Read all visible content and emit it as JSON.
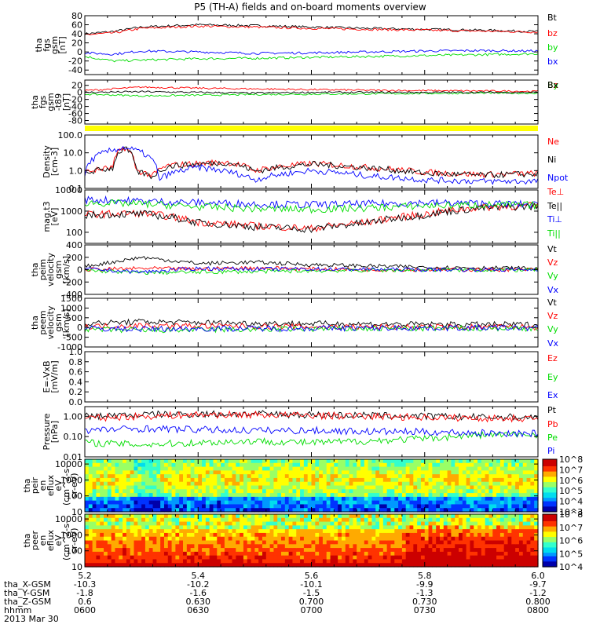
{
  "title": "P5 (TH-A) fields and on-board moments overview",
  "x_axis": {
    "ticks": [
      "5.2",
      "5.4",
      "5.6",
      "5.8",
      "6.0"
    ],
    "rows": [
      {
        "label": "tha_X-GSM",
        "values": [
          "-10.3",
          "-10.2",
          "-10.1",
          "-9.9",
          "-9.7"
        ]
      },
      {
        "label": "tha_Y-GSM",
        "values": [
          "-1.8",
          "-1.6",
          "-1.5",
          "-1.3",
          "-1.2"
        ]
      },
      {
        "label": "tha_Z-GSM",
        "values": [
          "0.6",
          "0.630",
          "0.700",
          "0.730",
          "0.800"
        ]
      },
      {
        "label": "hhmm",
        "values": [
          "0600",
          "0630",
          "0700",
          "0730",
          "0800"
        ]
      }
    ],
    "date": "2013 Mar 30"
  },
  "colors": {
    "black": "#000000",
    "red": "#ff0000",
    "green": "#00dd00",
    "blue": "#0000ff",
    "yellow": "#ffff00"
  },
  "chart_data": [
    {
      "type": "line",
      "ylabel": [
        "tha",
        "fgs",
        "gsm",
        "[nT]"
      ],
      "ylim": [
        -50,
        80
      ],
      "yticks": [
        "80",
        "60",
        "40",
        "20",
        "0",
        "-20",
        "-40"
      ],
      "legend": [
        {
          "name": "Bt",
          "color": "#000000"
        },
        {
          "name": "bz",
          "color": "#ff0000"
        },
        {
          "name": "by",
          "color": "#00dd00"
        },
        {
          "name": "bx",
          "color": "#0000ff"
        }
      ],
      "series": [
        {
          "name": "Bt",
          "x": [
            5.2,
            5.25,
            5.3,
            5.4,
            5.5,
            5.6,
            5.7,
            5.8,
            5.9,
            6.0
          ],
          "values": [
            40,
            45,
            55,
            60,
            58,
            55,
            52,
            50,
            48,
            45
          ]
        },
        {
          "name": "bz",
          "x": [
            5.2,
            5.25,
            5.3,
            5.4,
            5.5,
            5.6,
            5.7,
            5.8,
            5.9,
            6.0
          ],
          "values": [
            38,
            42,
            52,
            57,
            55,
            52,
            50,
            48,
            46,
            44
          ]
        },
        {
          "name": "by",
          "x": [
            5.2,
            5.25,
            5.3,
            5.4,
            5.5,
            5.6,
            5.7,
            5.8,
            5.9,
            6.0
          ],
          "values": [
            -10,
            -20,
            -18,
            -15,
            -14,
            -12,
            -10,
            -8,
            -6,
            -4
          ]
        },
        {
          "name": "bx",
          "x": [
            5.2,
            5.25,
            5.3,
            5.4,
            5.5,
            5.6,
            5.7,
            5.8,
            5.9,
            6.0
          ],
          "values": [
            -2,
            -5,
            2,
            0,
            -3,
            -2,
            0,
            2,
            3,
            2
          ]
        }
      ]
    },
    {
      "type": "line",
      "ylabel": [
        "tha",
        "fgs",
        "gsm",
        "-t89",
        "[nT]"
      ],
      "ylim": [
        -90,
        35
      ],
      "yticks": [
        "20",
        "0",
        "-20",
        "-40",
        "-60",
        "-80"
      ],
      "legend": [
        {
          "name": "Bz",
          "color": "#ff0000"
        },
        {
          "name": "By",
          "color": "#00dd00"
        },
        {
          "name": "Bx",
          "color": "#000000"
        }
      ],
      "series": [
        {
          "name": "Bz",
          "x": [
            5.2,
            5.3,
            5.4,
            5.5,
            5.6,
            5.7,
            5.8,
            5.9,
            6.0
          ],
          "values": [
            5,
            15,
            12,
            10,
            8,
            6,
            5,
            4,
            3
          ]
        },
        {
          "name": "By",
          "x": [
            5.2,
            5.3,
            5.4,
            5.5,
            5.6,
            5.7,
            5.8,
            5.9,
            6.0
          ],
          "values": [
            -5,
            -10,
            -8,
            -6,
            -5,
            -4,
            -3,
            -2,
            -2
          ]
        },
        {
          "name": "Bx",
          "x": [
            5.2,
            5.3,
            5.4,
            5.5,
            5.6,
            5.7,
            5.8,
            5.9,
            6.0
          ],
          "values": [
            0,
            2,
            0,
            -2,
            0,
            0,
            0,
            0,
            0
          ]
        }
      ]
    },
    {
      "type": "line",
      "ylabel": [
        "Density",
        "[cm-3]"
      ],
      "yscale": "log",
      "ylim": [
        0.1,
        100
      ],
      "yticks": [
        "100.0",
        "10.0",
        "1.0",
        "0.1"
      ],
      "legend": [
        {
          "name": "Ne",
          "color": "#ff0000"
        },
        {
          "name": "Ni",
          "color": "#000000"
        },
        {
          "name": "Npot",
          "color": "#0000ff"
        }
      ],
      "series": [
        {
          "name": "Ne",
          "x": [
            5.2,
            5.25,
            5.27,
            5.29,
            5.32,
            5.35,
            5.45,
            5.5,
            5.6,
            5.7,
            5.8,
            5.9,
            6.0
          ],
          "values": [
            0.8,
            1.5,
            20,
            1.0,
            0.5,
            2.0,
            3.0,
            1.0,
            2.5,
            1.5,
            0.8,
            0.6,
            0.7
          ]
        },
        {
          "name": "Ni",
          "x": [
            5.2,
            5.25,
            5.27,
            5.29,
            5.32,
            5.35,
            5.45,
            5.5,
            5.6,
            5.7,
            5.8,
            5.9,
            6.0
          ],
          "values": [
            0.7,
            1.4,
            18,
            0.9,
            0.45,
            1.8,
            2.8,
            0.9,
            2.3,
            1.4,
            0.7,
            0.55,
            0.65
          ]
        },
        {
          "name": "Npot",
          "x": [
            5.2,
            5.27,
            5.33,
            5.4,
            5.5,
            5.6,
            5.7,
            5.8,
            5.9,
            6.0
          ],
          "values": [
            0.5,
            20,
            0.3,
            1.5,
            0.3,
            1.0,
            0.5,
            0.3,
            0.25,
            0.25
          ]
        }
      ]
    },
    {
      "type": "line",
      "ylabel": [
        "mag.t3",
        "[eV]"
      ],
      "yscale": "log",
      "ylim": [
        30,
        10000
      ],
      "yticks": [
        "10000",
        "1000",
        "100"
      ],
      "legend": [
        {
          "name": "Te⊥",
          "color": "#ff0000"
        },
        {
          "name": "Te||",
          "color": "#000000"
        },
        {
          "name": "Ti⊥",
          "color": "#0000ff"
        },
        {
          "name": "Ti||",
          "color": "#00dd00"
        }
      ],
      "series": [
        {
          "name": "Te⊥",
          "x": [
            5.2,
            5.3,
            5.4,
            5.5,
            5.6,
            5.7,
            5.8,
            5.9,
            6.0
          ],
          "values": [
            700,
            800,
            300,
            200,
            150,
            300,
            700,
            1500,
            1800
          ]
        },
        {
          "name": "Te||",
          "x": [
            5.2,
            5.3,
            5.4,
            5.5,
            5.6,
            5.7,
            5.8,
            5.9,
            6.0
          ],
          "values": [
            650,
            750,
            280,
            180,
            140,
            280,
            650,
            1400,
            1700
          ]
        },
        {
          "name": "Ti⊥",
          "x": [
            5.2,
            5.3,
            5.4,
            5.5,
            5.6,
            5.7,
            5.8,
            5.9,
            6.0
          ],
          "values": [
            3500,
            3000,
            2500,
            2200,
            2000,
            2200,
            2500,
            2300,
            2000
          ]
        },
        {
          "name": "Ti||",
          "x": [
            5.2,
            5.3,
            5.4,
            5.5,
            5.6,
            5.7,
            5.8,
            5.9,
            6.0
          ],
          "values": [
            2500,
            2200,
            1600,
            1300,
            1200,
            1400,
            1800,
            2000,
            1900
          ]
        }
      ]
    },
    {
      "type": "line",
      "ylabel": [
        "tha",
        "peim",
        "velocity",
        "gsm",
        "[km/s]"
      ],
      "ylim": [
        -400,
        400
      ],
      "yticks": [
        "400",
        "200",
        "0",
        "-200",
        "-400"
      ],
      "legend": [
        {
          "name": "Vt",
          "color": "#000000"
        },
        {
          "name": "Vz",
          "color": "#ff0000"
        },
        {
          "name": "Vy",
          "color": "#00dd00"
        },
        {
          "name": "Vx",
          "color": "#0000ff"
        }
      ],
      "series": [
        {
          "name": "Vt",
          "x": [
            5.2,
            5.3,
            5.4,
            5.5,
            5.6,
            5.7,
            5.8,
            5.9,
            6.0
          ],
          "values": [
            50,
            200,
            100,
            120,
            80,
            60,
            40,
            30,
            20
          ]
        },
        {
          "name": "Vz",
          "x": [
            5.2,
            5.3,
            5.4,
            5.5,
            5.6,
            5.7,
            5.8,
            5.9,
            6.0
          ],
          "values": [
            0,
            20,
            10,
            30,
            10,
            0,
            0,
            0,
            0
          ]
        },
        {
          "name": "Vy",
          "x": [
            5.2,
            5.3,
            5.4,
            5.5,
            5.6,
            5.7,
            5.8,
            5.9,
            6.0
          ],
          "values": [
            -10,
            -50,
            -40,
            -30,
            -20,
            -10,
            -5,
            -5,
            -5
          ]
        },
        {
          "name": "Vx",
          "x": [
            5.2,
            5.3,
            5.4,
            5.5,
            5.6,
            5.7,
            5.8,
            5.9,
            6.0
          ],
          "values": [
            10,
            -40,
            20,
            10,
            10,
            5,
            0,
            0,
            0
          ]
        }
      ]
    },
    {
      "type": "line",
      "ylabel": [
        "tha",
        "peem",
        "velocity",
        "gsm",
        "[km/s]"
      ],
      "ylim": [
        -1000,
        1500
      ],
      "yticks": [
        "1500",
        "1000",
        "500",
        "0",
        "-500",
        "-1000"
      ],
      "legend": [
        {
          "name": "Vt",
          "color": "#000000"
        },
        {
          "name": "Vz",
          "color": "#ff0000"
        },
        {
          "name": "Vy",
          "color": "#00dd00"
        },
        {
          "name": "Vx",
          "color": "#0000ff"
        }
      ],
      "series": [
        {
          "name": "Vt",
          "x": [
            5.2,
            5.3,
            5.4,
            5.5,
            5.6,
            5.7,
            5.8,
            5.9,
            6.0
          ],
          "values": [
            200,
            300,
            250,
            220,
            200,
            180,
            160,
            150,
            150
          ]
        },
        {
          "name": "Vz",
          "x": [
            5.2,
            5.3,
            5.4,
            5.5,
            5.6,
            5.7,
            5.8,
            5.9,
            6.0
          ],
          "values": [
            50,
            100,
            80,
            60,
            40,
            30,
            20,
            20,
            20
          ]
        },
        {
          "name": "Vy",
          "x": [
            5.2,
            5.3,
            5.4,
            5.5,
            5.6,
            5.7,
            5.8,
            5.9,
            6.0
          ],
          "values": [
            -100,
            -150,
            -120,
            -100,
            -80,
            -60,
            -50,
            -40,
            -40
          ]
        },
        {
          "name": "Vx",
          "x": [
            5.2,
            5.3,
            5.4,
            5.5,
            5.6,
            5.7,
            5.8,
            5.9,
            6.0
          ],
          "values": [
            -50,
            -80,
            -60,
            -50,
            -40,
            -30,
            -20,
            -20,
            -20
          ]
        }
      ]
    },
    {
      "type": "line",
      "ylabel": [
        "E=-VxB",
        "[mV/m]"
      ],
      "ylim": [
        0,
        1
      ],
      "yticks": [
        "1.0",
        "0.8",
        "0.6",
        "0.4",
        "0.2",
        "0.0"
      ],
      "legend": [
        {
          "name": "Ez",
          "color": "#ff0000"
        },
        {
          "name": "Ey",
          "color": "#00dd00"
        },
        {
          "name": "Ex",
          "color": "#0000ff"
        }
      ],
      "series": []
    },
    {
      "type": "line",
      "ylabel": [
        "Pressure",
        "[nPa]"
      ],
      "yscale": "log",
      "ylim": [
        0.01,
        3
      ],
      "yticks": [
        "1.00",
        "0.10",
        "0.01"
      ],
      "legend": [
        {
          "name": "Pt",
          "color": "#000000"
        },
        {
          "name": "Pb",
          "color": "#ff0000"
        },
        {
          "name": "Pe",
          "color": "#00dd00"
        },
        {
          "name": "Pi",
          "color": "#0000ff"
        }
      ],
      "series": [
        {
          "name": "Pt",
          "x": [
            5.2,
            5.3,
            5.4,
            5.5,
            5.6,
            5.7,
            5.8,
            5.9,
            6.0
          ],
          "values": [
            1.0,
            1.2,
            1.3,
            1.3,
            1.2,
            1.1,
            1.0,
            0.9,
            0.9
          ]
        },
        {
          "name": "Pb",
          "x": [
            5.2,
            5.3,
            5.4,
            5.5,
            5.6,
            5.7,
            5.8,
            5.9,
            6.0
          ],
          "values": [
            0.8,
            1.0,
            1.2,
            1.2,
            1.1,
            1.0,
            0.9,
            0.8,
            0.8
          ]
        },
        {
          "name": "Pe",
          "x": [
            5.2,
            5.3,
            5.4,
            5.5,
            5.6,
            5.7,
            5.8,
            5.9,
            6.0
          ],
          "values": [
            0.05,
            0.04,
            0.05,
            0.06,
            0.05,
            0.06,
            0.08,
            0.12,
            0.13
          ]
        },
        {
          "name": "Pi",
          "x": [
            5.2,
            5.3,
            5.4,
            5.5,
            5.6,
            5.7,
            5.8,
            5.9,
            6.0
          ],
          "values": [
            0.2,
            0.25,
            0.22,
            0.2,
            0.2,
            0.18,
            0.17,
            0.15,
            0.14
          ]
        }
      ]
    },
    {
      "type": "heatmap",
      "ylabel": [
        "tha",
        "peir",
        "en",
        "eflux",
        "eV",
        "(cm^2-s-",
        "sr-eV)"
      ],
      "yscale": "log",
      "ylim": [
        10,
        20000
      ],
      "yticks": [
        "10000",
        "1000",
        "100",
        "10"
      ],
      "colorbar": {
        "ticks": [
          "10^8",
          "10^7",
          "10^6",
          "10^5",
          "10^4",
          "10^3"
        ],
        "range": [
          3,
          8
        ]
      }
    },
    {
      "type": "heatmap",
      "ylabel": [
        "tha",
        "peer",
        "en",
        "eflux",
        "eV",
        "(cm^2-s-",
        "sr-eV)"
      ],
      "yscale": "log",
      "ylim": [
        10,
        20000
      ],
      "yticks": [
        "10000",
        "1000",
        "100",
        "10"
      ],
      "colorbar": {
        "ticks": [
          "10^8",
          "10^7",
          "10^6",
          "10^5",
          "10^4"
        ],
        "range": [
          4,
          8
        ]
      }
    }
  ]
}
